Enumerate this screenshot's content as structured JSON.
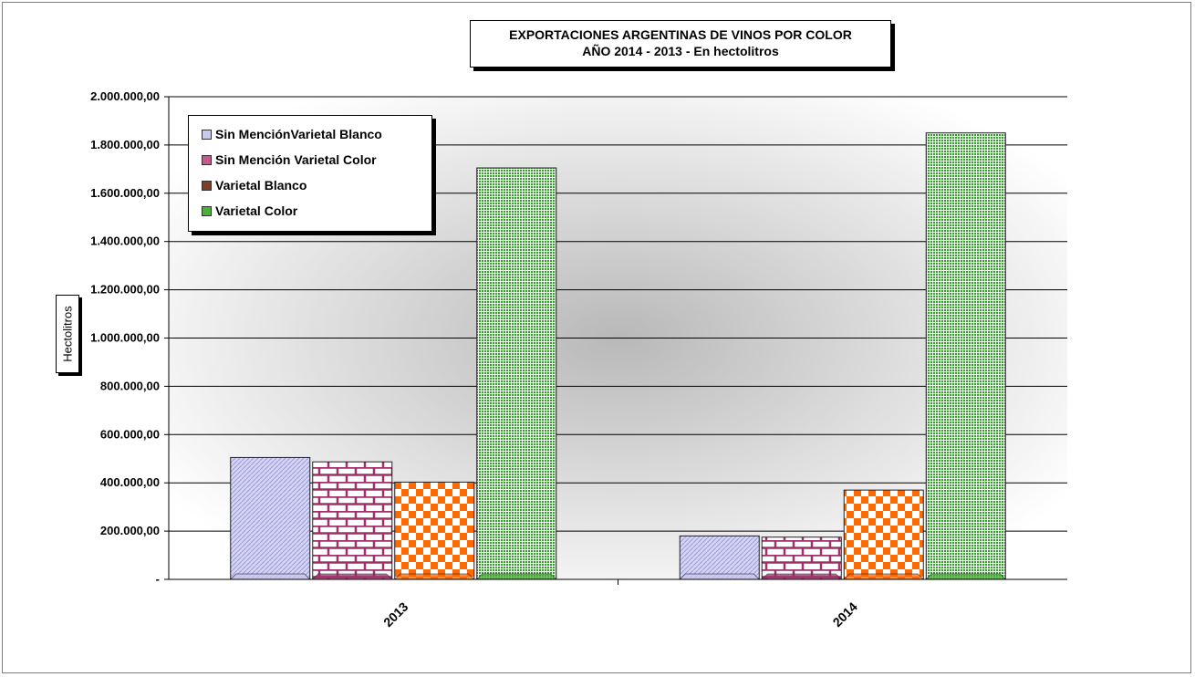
{
  "chart_data": {
    "type": "bar",
    "title": "EXPORTACIONES ARGENTINAS DE VINOS POR COLOR",
    "subtitle": "AÑO 2014 - 2013 - En hectolitros",
    "ylabel": "Hectolitros",
    "xlabel": "",
    "categories": [
      "2013",
      "2014"
    ],
    "ylim": [
      0,
      2000000
    ],
    "yticks": [
      "-",
      "200.000,00",
      "400.000,00",
      "600.000,00",
      "800.000,00",
      "1.000.000,00",
      "1.200.000,00",
      "1.400.000,00",
      "1.600.000,00",
      "1.800.000,00",
      "2.000.000,00"
    ],
    "grid": true,
    "legend_position": "top-left",
    "series": [
      {
        "name": "Sin MenciónVarietal Blanco",
        "values": [
          505000,
          180000
        ],
        "color": "#c9c9f0"
      },
      {
        "name": "Sin Mención Varietal Color",
        "values": [
          487000,
          175000
        ],
        "color": "#a0306a"
      },
      {
        "name": "Varietal Blanco",
        "values": [
          403000,
          370000
        ],
        "color": "#ff6600"
      },
      {
        "name": "Varietal Color",
        "values": [
          1705000,
          1850000
        ],
        "color": "#4caf3a"
      }
    ]
  }
}
